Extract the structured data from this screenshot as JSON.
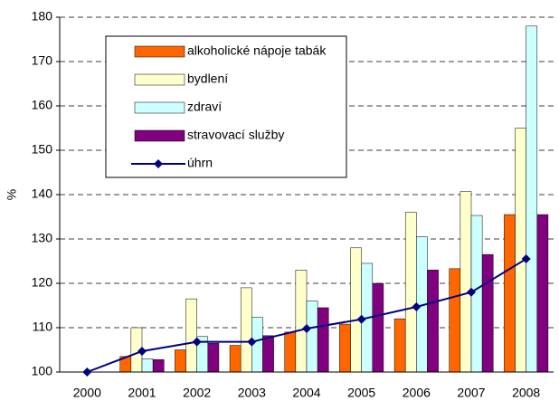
{
  "chart_data": {
    "type": "bar",
    "y_label": "%",
    "categories": [
      "2000",
      "2001",
      "2002",
      "2003",
      "2004",
      "2005",
      "2006",
      "2007",
      "2008"
    ],
    "series": [
      {
        "name": "alkoholické nápoje tabák",
        "color": "#ff6600",
        "values": [
          100,
          103.5,
          105,
          106,
          109,
          110.8,
          112,
          123.3,
          135.5
        ]
      },
      {
        "name": "bydlení",
        "color": "#ffffcc",
        "values": [
          100,
          110,
          116.5,
          119,
          123,
          128,
          136,
          140.7,
          155
        ]
      },
      {
        "name": "zdraví",
        "color": "#ccffff",
        "values": [
          100,
          103,
          108,
          112.3,
          116,
          124.5,
          130.5,
          135.3,
          178
        ]
      },
      {
        "name": "stravovací služby",
        "color": "#800080",
        "values": [
          100,
          102.8,
          106.5,
          108.2,
          114.5,
          120,
          123,
          126.5,
          135.5
        ]
      },
      {
        "name": "úhrn",
        "type": "line",
        "color": "#000080",
        "values": [
          100,
          104.7,
          106.8,
          106.8,
          109.8,
          111.9,
          114.7,
          118,
          125.5
        ]
      }
    ],
    "ylim": [
      100,
      180
    ],
    "yticks": [
      100,
      110,
      120,
      130,
      140,
      150,
      160,
      170,
      180
    ],
    "grid": true
  }
}
